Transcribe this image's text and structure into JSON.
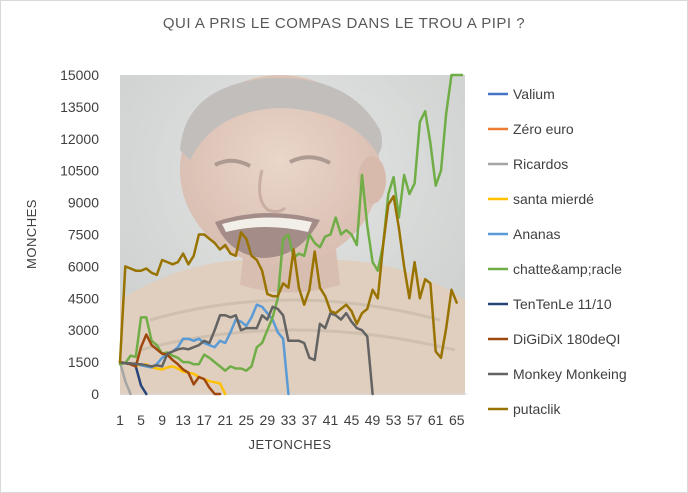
{
  "chart_data": {
    "type": "line",
    "title": "QUI A PRIS LE COMPAS DANS LE TROU A PIPI ?",
    "xlabel": "JETONCHES",
    "ylabel": "MONCHES",
    "ylim": [
      0,
      15000
    ],
    "xlim": [
      1,
      66
    ],
    "y_ticks": [
      "0",
      "1500",
      "3000",
      "4500",
      "6000",
      "7500",
      "9000",
      "10500",
      "12000",
      "13500",
      "15000"
    ],
    "x_ticks": [
      "1",
      "5",
      "9",
      "13",
      "17",
      "21",
      "25",
      "29",
      "33",
      "37",
      "41",
      "45",
      "49",
      "53",
      "57",
      "61",
      "65"
    ],
    "grid": false,
    "legend_position": "right",
    "background_image": "laughing-man-meme",
    "series": [
      {
        "name": "Valium",
        "color": "#4472c4",
        "x": [
          1
        ],
        "y": [
          1500
        ]
      },
      {
        "name": "Zéro euro",
        "color": "#ed7d31",
        "x": [
          1
        ],
        "y": [
          1500
        ]
      },
      {
        "name": "Ricardos",
        "color": "#a5a5a5",
        "x": [
          1,
          2,
          3
        ],
        "y": [
          1500,
          600,
          0
        ]
      },
      {
        "name": "santa mierdé",
        "color": "#ffc000",
        "x": [
          1,
          2,
          3,
          4,
          5,
          6,
          7,
          8,
          9,
          10,
          11,
          12,
          13,
          14,
          15,
          16,
          17,
          18,
          19,
          20,
          21
        ],
        "y": [
          1500,
          1450,
          1400,
          1350,
          1350,
          1400,
          1250,
          1200,
          1150,
          1250,
          1300,
          1200,
          1050,
          1000,
          950,
          800,
          700,
          600,
          550,
          500,
          0
        ]
      },
      {
        "name": "Ananas",
        "color": "#5b9bd5",
        "x": [
          1,
          2,
          3,
          4,
          5,
          6,
          7,
          8,
          9,
          10,
          11,
          12,
          13,
          14,
          15,
          16,
          17,
          18,
          19,
          20,
          21,
          22,
          23,
          24,
          25,
          26,
          27,
          28,
          29,
          30,
          31,
          32,
          33
        ],
        "y": [
          1500,
          1450,
          1400,
          1450,
          1350,
          1300,
          1250,
          1400,
          1700,
          1900,
          2000,
          2200,
          2600,
          2600,
          2500,
          2600,
          2400,
          2300,
          2200,
          2500,
          2400,
          2900,
          3500,
          3400,
          3200,
          3600,
          4200,
          4100,
          3800,
          3500,
          2900,
          2600,
          0
        ]
      },
      {
        "name": "chatte&amp;racle",
        "color": "#70ad47",
        "x": [
          1,
          2,
          3,
          4,
          5,
          6,
          7,
          8,
          9,
          10,
          11,
          12,
          13,
          14,
          15,
          16,
          17,
          18,
          19,
          20,
          21,
          22,
          23,
          24,
          25,
          26,
          27,
          28,
          29,
          30,
          31,
          32,
          33,
          34,
          35,
          36,
          37,
          38,
          39,
          40,
          41,
          42,
          43,
          44,
          45,
          46,
          47,
          48,
          49,
          50,
          51,
          52,
          53,
          54,
          55,
          56,
          57,
          58,
          59,
          60,
          61,
          62,
          63,
          64,
          65,
          66
        ],
        "y": [
          1400,
          1450,
          1800,
          1750,
          3600,
          3600,
          2500,
          2300,
          1900,
          1950,
          1800,
          1700,
          1500,
          1500,
          1400,
          1400,
          1850,
          1700,
          1500,
          1300,
          1100,
          1300,
          1200,
          1200,
          1100,
          1300,
          2200,
          2400,
          3000,
          3600,
          4500,
          7300,
          7500,
          6400,
          6600,
          6500,
          7500,
          7100,
          6900,
          7400,
          7500,
          8300,
          7500,
          7700,
          7500,
          7000,
          10300,
          7900,
          6200,
          5800,
          7000,
          9400,
          10200,
          8300,
          10300,
          9400,
          9900,
          12800,
          13300,
          11800,
          9800,
          10500,
          13200,
          15000,
          15000,
          15000
        ]
      },
      {
        "name": "TenTenLe 11/10",
        "color": "#264478",
        "x": [
          1,
          2,
          3,
          4,
          5,
          6
        ],
        "y": [
          1500,
          1450,
          1400,
          1300,
          400,
          0
        ]
      },
      {
        "name": "DiGiDiX 180deQI",
        "color": "#9e480e",
        "x": [
          1,
          2,
          3,
          4,
          5,
          6,
          7,
          8,
          9,
          10,
          11,
          12,
          13,
          14,
          15,
          16,
          17,
          18,
          19,
          20
        ],
        "y": [
          1500,
          1450,
          1400,
          1300,
          2200,
          2800,
          2300,
          2100,
          1900,
          1850,
          1600,
          1400,
          1150,
          1000,
          450,
          800,
          700,
          300,
          0,
          0
        ]
      },
      {
        "name": "Monkey Monkeing",
        "color": "#636363",
        "x": [
          1,
          2,
          3,
          4,
          5,
          6,
          7,
          8,
          9,
          10,
          11,
          12,
          13,
          14,
          15,
          16,
          17,
          18,
          19,
          20,
          21,
          22,
          23,
          24,
          25,
          26,
          27,
          28,
          29,
          30,
          31,
          32,
          33,
          34,
          35,
          36,
          37,
          38,
          39,
          40,
          41,
          42,
          43,
          44,
          45,
          46,
          47,
          48,
          49
        ],
        "y": [
          1500,
          1450,
          1450,
          1400,
          1400,
          1350,
          1300,
          1350,
          1300,
          1900,
          2000,
          2100,
          2150,
          2100,
          2200,
          2300,
          2500,
          2400,
          3000,
          3700,
          3700,
          3600,
          3700,
          3000,
          3100,
          3100,
          3100,
          3700,
          3500,
          4100,
          4000,
          3700,
          2500,
          2500,
          2500,
          2400,
          1700,
          1600,
          3300,
          3100,
          3800,
          3700,
          3500,
          3800,
          3400,
          3100,
          3000,
          2700,
          0
        ]
      },
      {
        "name": "putaclik",
        "color": "#997300",
        "x": [
          1,
          2,
          3,
          4,
          5,
          6,
          7,
          8,
          9,
          10,
          11,
          12,
          13,
          14,
          15,
          16,
          17,
          18,
          19,
          20,
          21,
          22,
          23,
          24,
          25,
          26,
          27,
          28,
          29,
          30,
          31,
          32,
          33,
          34,
          35,
          36,
          37,
          38,
          39,
          40,
          41,
          42,
          43,
          44,
          45,
          46,
          47,
          48,
          49,
          50,
          51,
          52,
          53,
          54,
          55,
          56,
          57,
          58,
          59,
          60,
          61,
          62,
          63,
          64,
          65
        ],
        "y": [
          1500,
          6000,
          5900,
          5800,
          5800,
          5900,
          5700,
          5600,
          6300,
          6200,
          6100,
          6200,
          6600,
          6100,
          6500,
          7500,
          7500,
          7300,
          7100,
          6800,
          7000,
          6600,
          6500,
          7600,
          7300,
          6500,
          6300,
          5800,
          4700,
          4600,
          4600,
          5200,
          5000,
          6800,
          5000,
          4200,
          4900,
          6700,
          5000,
          4600,
          3900,
          3800,
          4000,
          4200,
          3900,
          3300,
          3800,
          4000,
          4900,
          4500,
          7000,
          8900,
          9300,
          7800,
          6000,
          4500,
          6200,
          4500,
          5400,
          5200,
          2000,
          1700,
          3100,
          4900,
          4300
        ]
      }
    ]
  }
}
